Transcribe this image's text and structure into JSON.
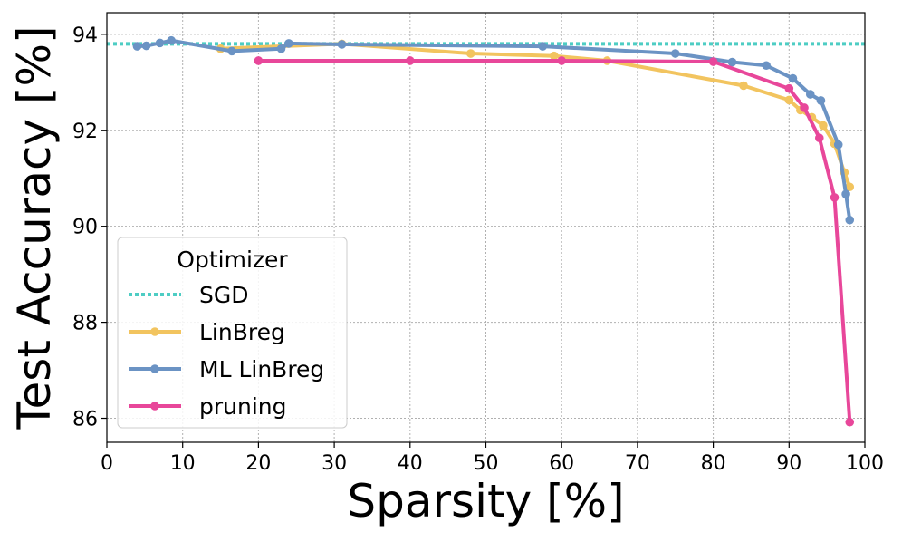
{
  "chart_data": {
    "type": "line",
    "title": "",
    "xlabel": "Sparsity [%]",
    "ylabel": "Test Accuracy [%]",
    "xlim": [
      0,
      100
    ],
    "ylim": [
      85.5,
      94.45
    ],
    "xticks": [
      0,
      10,
      20,
      30,
      40,
      50,
      60,
      70,
      80,
      90,
      100
    ],
    "yticks": [
      86,
      88,
      90,
      92,
      94
    ],
    "grid": true,
    "legend": {
      "title": "Optimizer",
      "position": "lower-left"
    },
    "reference_line": {
      "name": "SGD",
      "y": 93.8,
      "color": "#4ecdc4",
      "style": "dotted"
    },
    "series": [
      {
        "name": "LinBreg",
        "color": "#f2c45f",
        "x": [
          15,
          31,
          48,
          59,
          66,
          84,
          90,
          91.5,
          93,
          94.5,
          96,
          97.3,
          98
        ],
        "y": [
          93.7,
          93.8,
          93.6,
          93.55,
          93.45,
          92.93,
          92.63,
          92.42,
          92.27,
          92.1,
          91.72,
          91.12,
          90.82
        ]
      },
      {
        "name": "ML LinBreg",
        "color": "#6b93c4",
        "x": [
          4,
          5.2,
          7,
          8.5,
          16.5,
          23,
          24,
          31,
          57.5,
          75,
          82.5,
          87,
          90.5,
          92.8,
          94.2,
          96.5,
          97.5,
          98
        ],
        "y": [
          93.75,
          93.76,
          93.82,
          93.87,
          93.65,
          93.7,
          93.81,
          93.79,
          93.75,
          93.6,
          93.42,
          93.35,
          93.08,
          92.75,
          92.62,
          91.7,
          90.67,
          90.13
        ]
      },
      {
        "name": "pruning",
        "color": "#e8479a",
        "x": [
          20,
          40,
          60,
          80,
          90,
          92,
          94,
          96,
          98
        ],
        "y": [
          93.45,
          93.45,
          93.45,
          93.43,
          92.87,
          92.47,
          91.84,
          90.6,
          85.92
        ]
      }
    ]
  }
}
